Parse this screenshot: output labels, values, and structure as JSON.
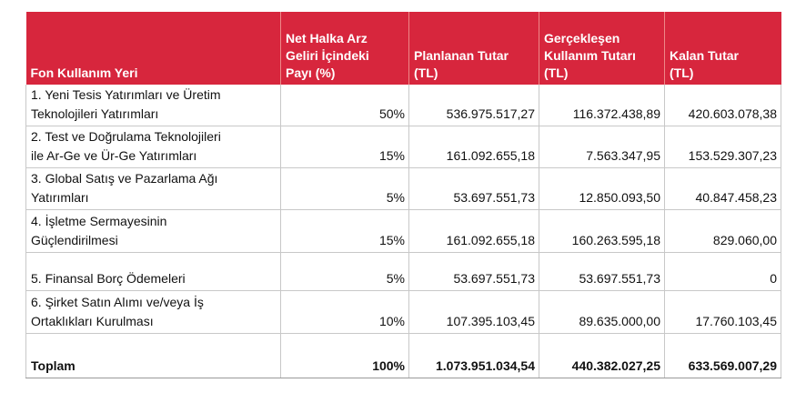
{
  "table": {
    "header": [
      [
        "Fon Kullanım Yeri"
      ],
      [
        "Net Halka Arz",
        "Geliri İçindeki",
        "Payı (%)"
      ],
      [
        "Planlanan Tutar",
        "(TL)"
      ],
      [
        "Gerçekleşen",
        "Kullanım Tutarı",
        "(TL)"
      ],
      [
        "Kalan Tutar",
        "(TL)"
      ]
    ],
    "rows": [
      [
        [
          "1. Yeni Tesis Yatırımları ve Üretim",
          "Teknolojileri Yatırımları"
        ],
        "50%",
        "536.975.517,27",
        "116.372.438,89",
        "420.603.078,38"
      ],
      [
        [
          "2. Test ve Doğrulama Teknolojileri",
          "ile Ar-Ge ve Ür-Ge Yatırımları"
        ],
        "15%",
        "161.092.655,18",
        "7.563.347,95",
        "153.529.307,23"
      ],
      [
        [
          "3. Global Satış ve Pazarlama Ağı",
          "Yatırımları"
        ],
        "5%",
        "53.697.551,73",
        "12.850.093,50",
        "40.847.458,23"
      ],
      [
        [
          "4. İşletme Sermayesinin",
          "Güçlendirilmesi"
        ],
        "15%",
        "161.092.655,18",
        "160.263.595,18",
        "829.060,00"
      ],
      [
        [
          "5. Finansal Borç Ödemeleri"
        ],
        "5%",
        "53.697.551,73",
        "53.697.551,73",
        "0"
      ],
      [
        [
          "6. Şirket Satın Alımı ve/veya İş",
          "Ortaklıkları Kurulması"
        ],
        "10%",
        "107.395.103,45",
        "89.635.000,00",
        "17.760.103,45"
      ]
    ],
    "total": [
      [
        "Toplam"
      ],
      "100%",
      "1.073.951.034,54",
      "440.382.027,25",
      "633.569.007,29"
    ]
  }
}
